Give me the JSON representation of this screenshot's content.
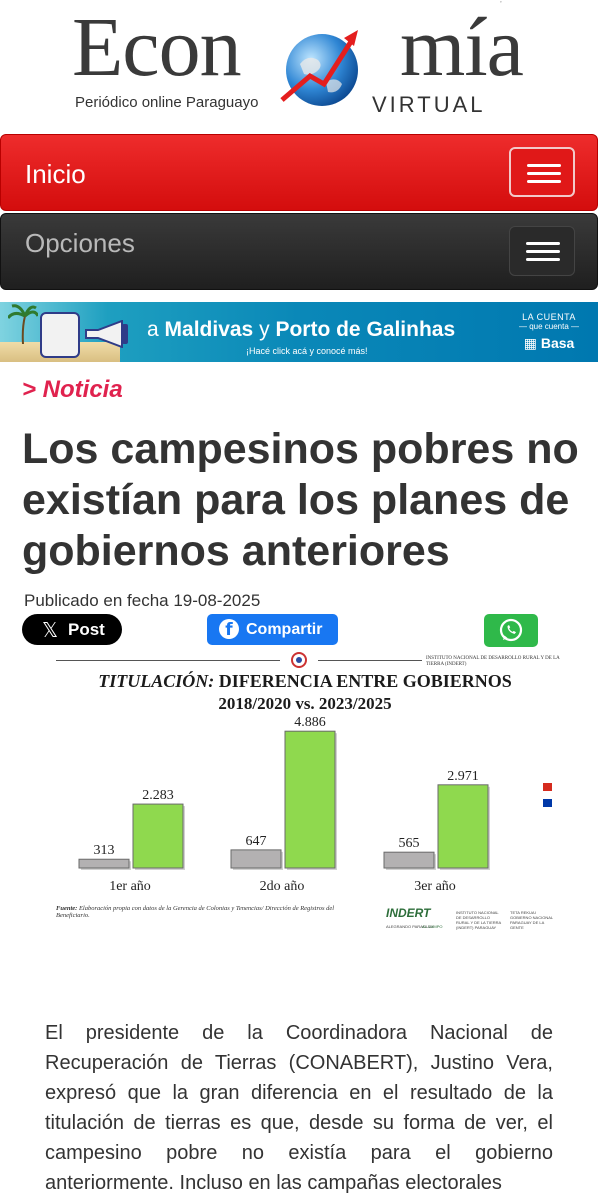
{
  "logo": {
    "word_left": "Econ",
    "word_right": "mía",
    "tagline": "Periódico online Paraguayo",
    "sub_brand": "VIRTUAL",
    "top_mark": "’"
  },
  "nav": {
    "primary_label": "Inicio",
    "secondary_label": "Opciones"
  },
  "banner": {
    "connector": "a",
    "destination_1": "Maldivas",
    "destination_joiner": "y",
    "destination_2": "Porto de Galinhas",
    "cta": "¡Hacé click acá y conocé más!",
    "brand_line1": "LA CUENTA",
    "brand_line2": "— que cuenta —",
    "brand_name": "Basa"
  },
  "article": {
    "section": "> Noticia",
    "title": "Los campesinos pobres no existían para los planes de gobiernos anteriores",
    "published": "Publicado en fecha 19-08-2025",
    "body": "El presidente de la Coordinadora Nacional de Recuperación de Tierras (CONABERT), Justino Vera, expresó que la gran diferencia en el resultado de la titulación de tierras es que, desde su forma de ver, el campesino pobre no existía para el gobierno anteriormente. Incluso en las campañas electorales"
  },
  "share": {
    "x_label": "Post",
    "x_glyph": "𝕏",
    "facebook_label": "Compartir",
    "facebook_glyph": "f"
  },
  "figure": {
    "institution": "INSTITUTO NACIONAL DE DESARROLLO RURAL Y DE LA TIERRA (INDERT)",
    "title_italic": "TITULACIÓN:",
    "title_rest": "DIFERENCIA ENTRE GOBIERNOS",
    "subtitle": "2018/2020 vs. 2023/2025",
    "source_label": "Fuente:",
    "source_text": "Elaboración propia con datos de la Gerencia de Colonias y Tenencias/ Dirección de Registros del Beneficiario.",
    "logo_name": "INDERT",
    "logo_slogan": "ALEGRANDO PARAGUAY",
    "logo_slogan_tag": "AL CAMPO",
    "partner_text": "INSTITUTO NACIONAL DE DESARROLLO RURAL Y DE LA TIERRA (INDERT) PARAGUAY",
    "partner_text_2": "TETA REKUAI GOBIERNO NACIONAL PARAGUAY DE LA GENTE"
  },
  "chart_data": {
    "type": "bar",
    "categories": [
      "1er año",
      "2do año",
      "3er año"
    ],
    "series": [
      {
        "values": [
          313,
          647,
          565
        ],
        "color": "#b3b1b2"
      },
      {
        "values": [
          2283,
          4886,
          2971
        ],
        "color": "#8fd94e"
      }
    ],
    "value_labels": [
      [
        "313",
        "647",
        "565"
      ],
      [
        "2.283",
        "4.886",
        "2.971"
      ]
    ],
    "ylim": [
      0,
      5000
    ],
    "grid": false,
    "title": "TITULACIÓN: DIFERENCIA ENTRE GOBIERNOS",
    "subtitle": "2018/2020 vs. 2023/2025"
  },
  "colors": {
    "accent": "#e0224e",
    "nav_red": "#e01818",
    "nav_dark": "#2a2a2a",
    "facebook": "#1877f2",
    "whatsapp": "#2fb94a"
  },
  "icons": {
    "menu": "hamburger-icon",
    "whatsapp": "whatsapp-icon",
    "facebook": "facebook-icon",
    "x": "x-logo-icon"
  }
}
